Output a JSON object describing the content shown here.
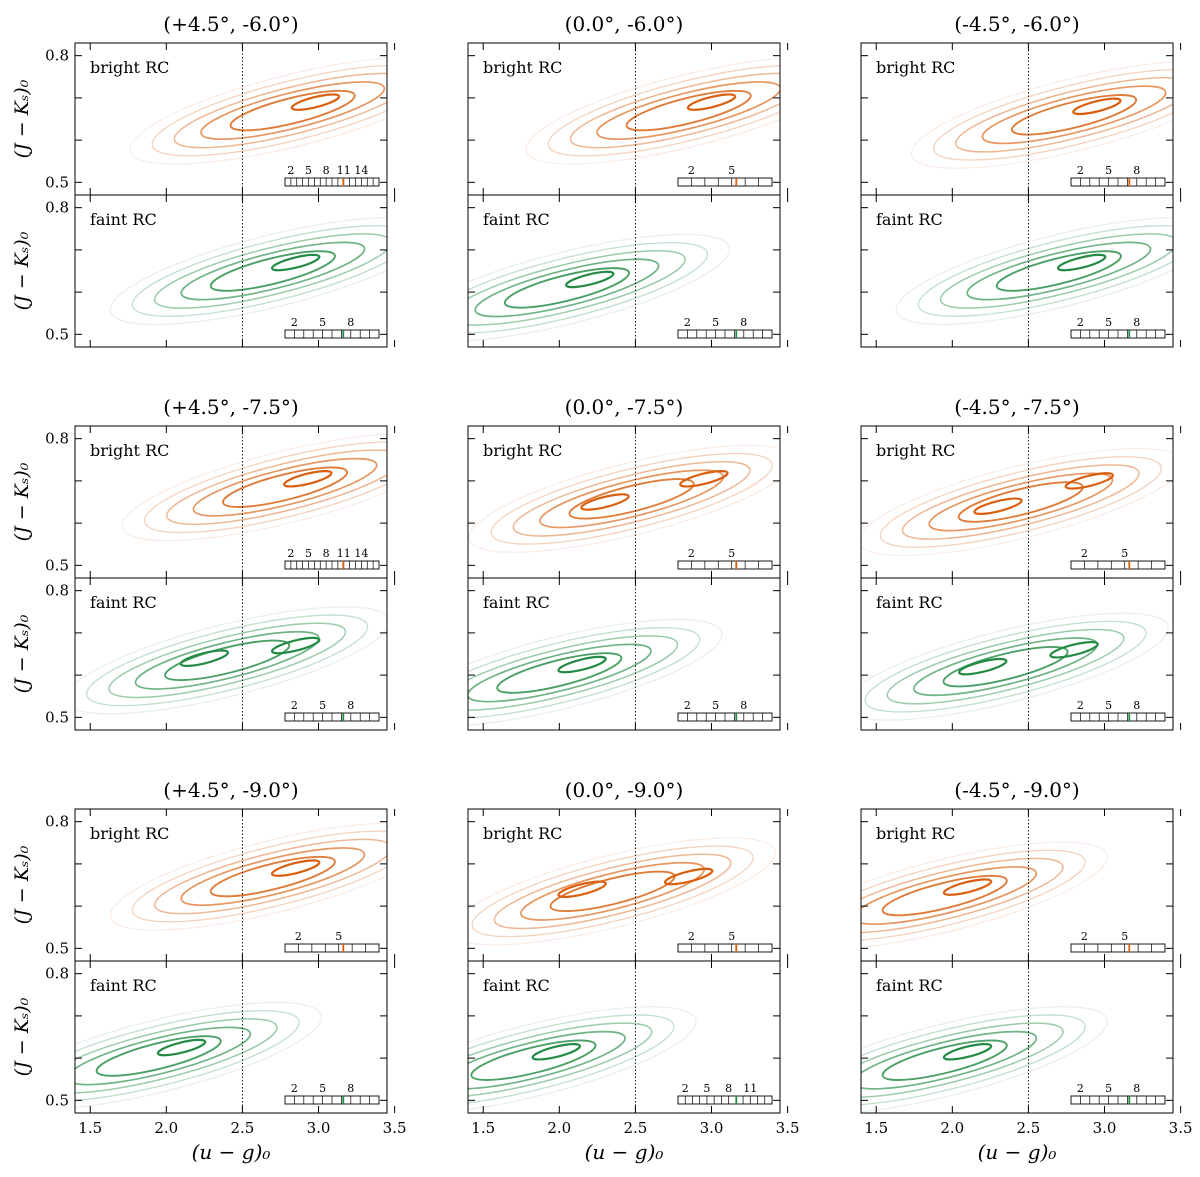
{
  "figure": {
    "xlabel": "(u − g)₀",
    "ylabel": "(J − Kₛ)₀",
    "x_ticks": [
      1.5,
      2.0,
      2.5,
      3.0,
      3.5
    ],
    "x_tick_labels": [
      "1.5",
      "2.0",
      "2.5",
      "3.0",
      "3.5"
    ],
    "y_tick_labels": [
      "0.5",
      "0.8"
    ],
    "colors": {
      "bright": "#d95f0e",
      "faint": "#238b45"
    }
  },
  "chart_data": [
    {
      "type": "contour",
      "title": "(+4.5°, -6.0°)",
      "bright": {
        "label": "bright RC",
        "xlim": [
          1.4,
          3.45
        ],
        "ylim": [
          0.47,
          0.83
        ],
        "reference_line_x": 2.5,
        "scale_labels": [
          "2",
          "5",
          "8",
          "11",
          "14"
        ],
        "peaks": [
          {
            "x": 2.98,
            "y": 0.69
          }
        ]
      },
      "faint": {
        "label": "faint RC",
        "xlim": [
          1.4,
          3.45
        ],
        "ylim": [
          0.47,
          0.83
        ],
        "reference_line_x": 2.5,
        "scale_labels": [
          "2",
          "5",
          "8"
        ],
        "peaks": [
          {
            "x": 2.85,
            "y": 0.67
          }
        ]
      }
    },
    {
      "type": "contour",
      "title": "(0.0°, -6.0°)",
      "bright": {
        "label": "bright RC",
        "xlim": [
          1.4,
          3.45
        ],
        "ylim": [
          0.47,
          0.83
        ],
        "reference_line_x": 2.5,
        "scale_labels": [
          "2",
          "5"
        ],
        "peaks": [
          {
            "x": 3.0,
            "y": 0.69
          }
        ]
      },
      "faint": {
        "label": "faint RC",
        "xlim": [
          1.4,
          3.45
        ],
        "ylim": [
          0.47,
          0.83
        ],
        "reference_line_x": 2.5,
        "scale_labels": [
          "2",
          "5",
          "8"
        ],
        "peaks": [
          {
            "x": 2.2,
            "y": 0.63
          }
        ]
      }
    },
    {
      "type": "contour",
      "title": "(-4.5°, -6.0°)",
      "bright": {
        "label": "bright RC",
        "xlim": [
          1.4,
          3.45
        ],
        "ylim": [
          0.47,
          0.83
        ],
        "reference_line_x": 2.5,
        "scale_labels": [
          "2",
          "5",
          "8"
        ],
        "peaks": [
          {
            "x": 2.95,
            "y": 0.68
          }
        ]
      },
      "faint": {
        "label": "faint RC",
        "xlim": [
          1.4,
          3.45
        ],
        "ylim": [
          0.47,
          0.83
        ],
        "reference_line_x": 2.5,
        "scale_labels": [
          "2",
          "5",
          "8"
        ],
        "peaks": [
          {
            "x": 2.85,
            "y": 0.67
          }
        ]
      }
    },
    {
      "type": "contour",
      "title": "(+4.5°, -7.5°)",
      "bright": {
        "label": "bright RC",
        "xlim": [
          1.4,
          3.45
        ],
        "ylim": [
          0.47,
          0.83
        ],
        "reference_line_x": 2.5,
        "scale_labels": [
          "2",
          "5",
          "8",
          "11",
          "14"
        ],
        "peaks": [
          {
            "x": 2.93,
            "y": 0.705
          }
        ]
      },
      "faint": {
        "label": "faint RC",
        "xlim": [
          1.4,
          3.45
        ],
        "ylim": [
          0.47,
          0.83
        ],
        "reference_line_x": 2.5,
        "scale_labels": [
          "2",
          "5",
          "8"
        ],
        "peaks": [
          {
            "x": 2.25,
            "y": 0.64
          },
          {
            "x": 2.85,
            "y": 0.67
          }
        ]
      }
    },
    {
      "type": "contour",
      "title": "(0.0°, -7.5°)",
      "bright": {
        "label": "bright RC",
        "xlim": [
          1.4,
          3.45
        ],
        "ylim": [
          0.47,
          0.83
        ],
        "reference_line_x": 2.5,
        "scale_labels": [
          "2",
          "5"
        ],
        "peaks": [
          {
            "x": 2.95,
            "y": 0.705
          },
          {
            "x": 2.3,
            "y": 0.65
          }
        ]
      },
      "faint": {
        "label": "faint RC",
        "xlim": [
          1.4,
          3.45
        ],
        "ylim": [
          0.47,
          0.83
        ],
        "reference_line_x": 2.5,
        "scale_labels": [
          "2",
          "5",
          "8"
        ],
        "peaks": [
          {
            "x": 2.15,
            "y": 0.625
          }
        ]
      }
    },
    {
      "type": "contour",
      "title": "(-4.5°, -7.5°)",
      "bright": {
        "label": "bright RC",
        "xlim": [
          1.4,
          3.45
        ],
        "ylim": [
          0.47,
          0.83
        ],
        "reference_line_x": 2.5,
        "scale_labels": [
          "2",
          "5"
        ],
        "peaks": [
          {
            "x": 2.3,
            "y": 0.64
          },
          {
            "x": 2.9,
            "y": 0.7
          }
        ]
      },
      "faint": {
        "label": "faint RC",
        "xlim": [
          1.4,
          3.45
        ],
        "ylim": [
          0.47,
          0.83
        ],
        "reference_line_x": 2.5,
        "scale_labels": [
          "2",
          "5",
          "8"
        ],
        "peaks": [
          {
            "x": 2.2,
            "y": 0.62
          },
          {
            "x": 2.8,
            "y": 0.66
          }
        ]
      }
    },
    {
      "type": "contour",
      "title": "(+4.5°, -9.0°)",
      "bright": {
        "label": "bright RC",
        "xlim": [
          1.4,
          3.45
        ],
        "ylim": [
          0.47,
          0.83
        ],
        "reference_line_x": 2.5,
        "scale_labels": [
          "2",
          "5"
        ],
        "peaks": [
          {
            "x": 2.85,
            "y": 0.69
          }
        ]
      },
      "faint": {
        "label": "faint RC",
        "xlim": [
          1.4,
          3.45
        ],
        "ylim": [
          0.47,
          0.83
        ],
        "reference_line_x": 2.5,
        "scale_labels": [
          "2",
          "5",
          "8"
        ],
        "peaks": [
          {
            "x": 2.1,
            "y": 0.625
          }
        ]
      }
    },
    {
      "type": "contour",
      "title": "(0.0°, -9.0°)",
      "bright": {
        "label": "bright RC",
        "xlim": [
          1.4,
          3.45
        ],
        "ylim": [
          0.47,
          0.83
        ],
        "reference_line_x": 2.5,
        "scale_labels": [
          "2",
          "5"
        ],
        "peaks": [
          {
            "x": 2.15,
            "y": 0.64
          },
          {
            "x": 2.85,
            "y": 0.67
          }
        ]
      },
      "faint": {
        "label": "faint RC",
        "xlim": [
          1.4,
          3.45
        ],
        "ylim": [
          0.47,
          0.83
        ],
        "reference_line_x": 2.5,
        "scale_labels": [
          "2",
          "5",
          "8",
          "11"
        ],
        "peaks": [
          {
            "x": 1.98,
            "y": 0.615
          }
        ]
      }
    },
    {
      "type": "contour",
      "title": "(-4.5°, -9.0°)",
      "bright": {
        "label": "bright RC",
        "xlim": [
          1.4,
          3.45
        ],
        "ylim": [
          0.47,
          0.83
        ],
        "reference_line_x": 2.5,
        "scale_labels": [
          "2",
          "5"
        ],
        "peaks": [
          {
            "x": 2.1,
            "y": 0.645
          }
        ]
      },
      "faint": {
        "label": "faint RC",
        "xlim": [
          1.4,
          3.45
        ],
        "ylim": [
          0.47,
          0.83
        ],
        "reference_line_x": 2.5,
        "scale_labels": [
          "2",
          "5",
          "8"
        ],
        "peaks": [
          {
            "x": 2.1,
            "y": 0.615
          }
        ]
      }
    }
  ]
}
